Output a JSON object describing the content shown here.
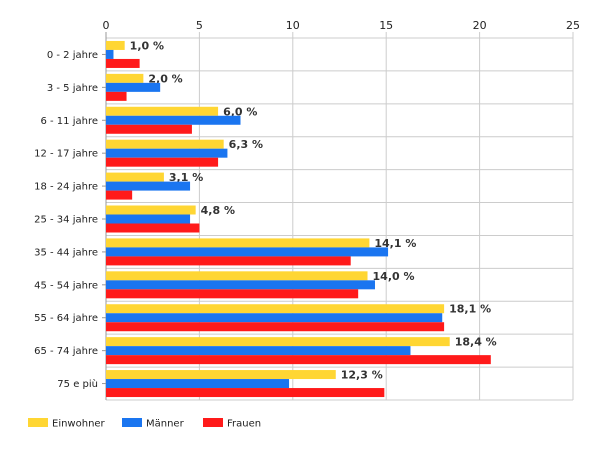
{
  "chart_data": {
    "type": "bar",
    "orientation": "horizontal",
    "categories": [
      "0 - 2 jahre",
      "3 - 5 jahre",
      "6 - 11 jahre",
      "12 - 17 jahre",
      "18 - 24 jahre",
      "25 - 34 jahre",
      "35 - 44 jahre",
      "45 - 54 jahre",
      "55 - 64 jahre",
      "65 - 74 jahre",
      "75 e più"
    ],
    "series": [
      {
        "name": "Einwohner",
        "color": "#FFD633",
        "values": [
          1.0,
          2.0,
          6.0,
          6.3,
          3.1,
          4.8,
          14.1,
          14.0,
          18.1,
          18.4,
          12.3
        ],
        "labels": [
          "1,0 %",
          "2,0 %",
          "6,0 %",
          "6,3 %",
          "3,1 %",
          "4,8 %",
          "14,1 %",
          "14,0 %",
          "18,1 %",
          "18,4 %",
          "12,3 %"
        ]
      },
      {
        "name": "Männer",
        "color": "#1A75F0",
        "values": [
          0.4,
          2.9,
          7.2,
          6.5,
          4.5,
          4.5,
          15.1,
          14.4,
          18.0,
          16.3,
          9.8
        ]
      },
      {
        "name": "Frauen",
        "color": "#FF1A1A",
        "values": [
          1.8,
          1.1,
          4.6,
          6.0,
          1.4,
          5.0,
          13.1,
          13.5,
          18.1,
          20.6,
          14.9
        ]
      }
    ],
    "xticks": [
      "0",
      "5",
      "10",
      "15",
      "20",
      "25"
    ],
    "xlim": [
      0,
      25
    ],
    "xaxis_position": "top",
    "grid": true,
    "legend_position": "bottom-left"
  }
}
